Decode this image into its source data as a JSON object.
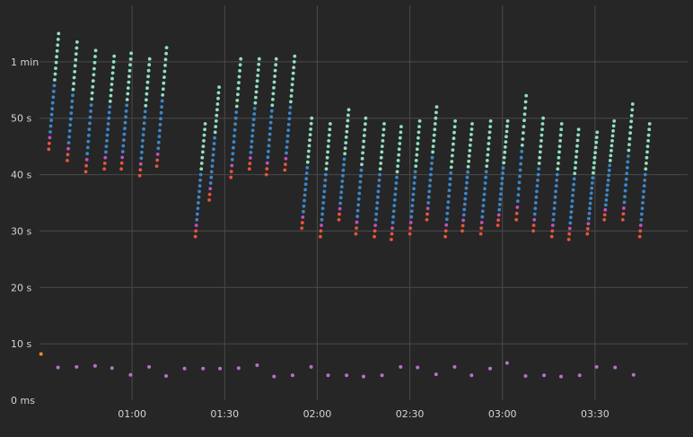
{
  "chart_data": {
    "type": "scatter",
    "x_unit": "seconds elapsed (clock mm:ss)",
    "y_unit": "seconds",
    "xlim": [
      30,
      240
    ],
    "ylim": [
      0,
      70
    ],
    "x_ticks": [
      {
        "value": 60,
        "label": "01:00"
      },
      {
        "value": 90,
        "label": "01:30"
      },
      {
        "value": 120,
        "label": "02:00"
      },
      {
        "value": 150,
        "label": "02:30"
      },
      {
        "value": 180,
        "label": "03:00"
      },
      {
        "value": 210,
        "label": "03:30"
      }
    ],
    "y_ticks": [
      {
        "value": 0,
        "label": "0 ms"
      },
      {
        "value": 10,
        "label": "10 s"
      },
      {
        "value": 20,
        "label": "20 s"
      },
      {
        "value": 30,
        "label": "30 s"
      },
      {
        "value": 40,
        "label": "40 s"
      },
      {
        "value": 50,
        "label": "50 s"
      },
      {
        "value": 60,
        "label": "1 min"
      }
    ],
    "grid": true,
    "colors": {
      "background": "#262626",
      "grid": "#4a4a4a",
      "top_series": "#8fe0c0",
      "upper_series": "#3c86c8",
      "low_series": "#c250c0",
      "min_series": "#e8543a",
      "bottom_series": "#b870d0",
      "bottom_start": "#f08a30"
    },
    "columns": [
      {
        "x": 33.0,
        "max": 65.0,
        "min": 44.5
      },
      {
        "x": 39.0,
        "max": 63.5,
        "min": 42.5
      },
      {
        "x": 45.0,
        "max": 62.0,
        "min": 40.5
      },
      {
        "x": 51.0,
        "max": 61.0,
        "min": 41.0
      },
      {
        "x": 56.5,
        "max": 61.5,
        "min": 41.0
      },
      {
        "x": 62.5,
        "max": 60.5,
        "min": 39.8
      },
      {
        "x": 68.0,
        "max": 62.5,
        "min": 41.5
      },
      {
        "x": 80.5,
        "max": 49.0,
        "min": 29.0
      },
      {
        "x": 85.0,
        "max": 55.5,
        "min": 35.5
      },
      {
        "x": 92.0,
        "max": 60.5,
        "min": 39.5
      },
      {
        "x": 98.0,
        "max": 60.5,
        "min": 41.0
      },
      {
        "x": 103.5,
        "max": 60.5,
        "min": 40.0
      },
      {
        "x": 109.5,
        "max": 61.0,
        "min": 40.8
      },
      {
        "x": 115.0,
        "max": 50.0,
        "min": 30.5
      },
      {
        "x": 121.0,
        "max": 49.0,
        "min": 29.0
      },
      {
        "x": 127.0,
        "max": 51.5,
        "min": 32.0
      },
      {
        "x": 132.5,
        "max": 50.0,
        "min": 29.5
      },
      {
        "x": 138.5,
        "max": 49.0,
        "min": 29.0
      },
      {
        "x": 144.0,
        "max": 48.5,
        "min": 28.5
      },
      {
        "x": 150.0,
        "max": 49.5,
        "min": 29.5
      },
      {
        "x": 155.5,
        "max": 52.0,
        "min": 32.0
      },
      {
        "x": 161.5,
        "max": 49.5,
        "min": 29.0
      },
      {
        "x": 167.0,
        "max": 49.0,
        "min": 30.0
      },
      {
        "x": 173.0,
        "max": 49.5,
        "min": 29.5
      },
      {
        "x": 178.5,
        "max": 49.5,
        "min": 31.0
      },
      {
        "x": 184.5,
        "max": 54.0,
        "min": 32.0
      },
      {
        "x": 190.0,
        "max": 50.0,
        "min": 30.0
      },
      {
        "x": 196.0,
        "max": 49.0,
        "min": 29.0
      },
      {
        "x": 201.5,
        "max": 48.0,
        "min": 28.5
      },
      {
        "x": 207.5,
        "max": 47.5,
        "min": 29.5
      },
      {
        "x": 213.0,
        "max": 49.5,
        "min": 32.0
      },
      {
        "x": 219.0,
        "max": 52.5,
        "min": 32.0
      },
      {
        "x": 224.5,
        "max": 49.0,
        "min": 29.0
      }
    ],
    "bottom_points": [
      {
        "x": 30.5,
        "y": 8.2
      },
      {
        "x": 36.0,
        "y": 5.8
      },
      {
        "x": 42.0,
        "y": 5.9
      },
      {
        "x": 48.0,
        "y": 6.1
      },
      {
        "x": 53.5,
        "y": 5.7
      },
      {
        "x": 59.5,
        "y": 4.5
      },
      {
        "x": 65.5,
        "y": 5.9
      },
      {
        "x": 71.0,
        "y": 4.3
      },
      {
        "x": 77.0,
        "y": 5.6
      },
      {
        "x": 83.0,
        "y": 5.6
      },
      {
        "x": 88.5,
        "y": 5.6
      },
      {
        "x": 94.5,
        "y": 5.7
      },
      {
        "x": 100.5,
        "y": 6.2
      },
      {
        "x": 106.0,
        "y": 4.2
      },
      {
        "x": 112.0,
        "y": 4.4
      },
      {
        "x": 118.0,
        "y": 5.9
      },
      {
        "x": 123.5,
        "y": 4.4
      },
      {
        "x": 129.5,
        "y": 4.4
      },
      {
        "x": 135.0,
        "y": 4.2
      },
      {
        "x": 141.0,
        "y": 4.4
      },
      {
        "x": 147.0,
        "y": 5.9
      },
      {
        "x": 152.5,
        "y": 5.8
      },
      {
        "x": 158.5,
        "y": 4.6
      },
      {
        "x": 164.5,
        "y": 5.9
      },
      {
        "x": 170.0,
        "y": 4.4
      },
      {
        "x": 176.0,
        "y": 5.6
      },
      {
        "x": 181.5,
        "y": 6.6
      },
      {
        "x": 187.5,
        "y": 4.3
      },
      {
        "x": 193.5,
        "y": 4.4
      },
      {
        "x": 199.0,
        "y": 4.2
      },
      {
        "x": 205.0,
        "y": 4.4
      },
      {
        "x": 210.5,
        "y": 5.9
      },
      {
        "x": 216.5,
        "y": 5.8
      },
      {
        "x": 222.5,
        "y": 4.5
      }
    ]
  }
}
